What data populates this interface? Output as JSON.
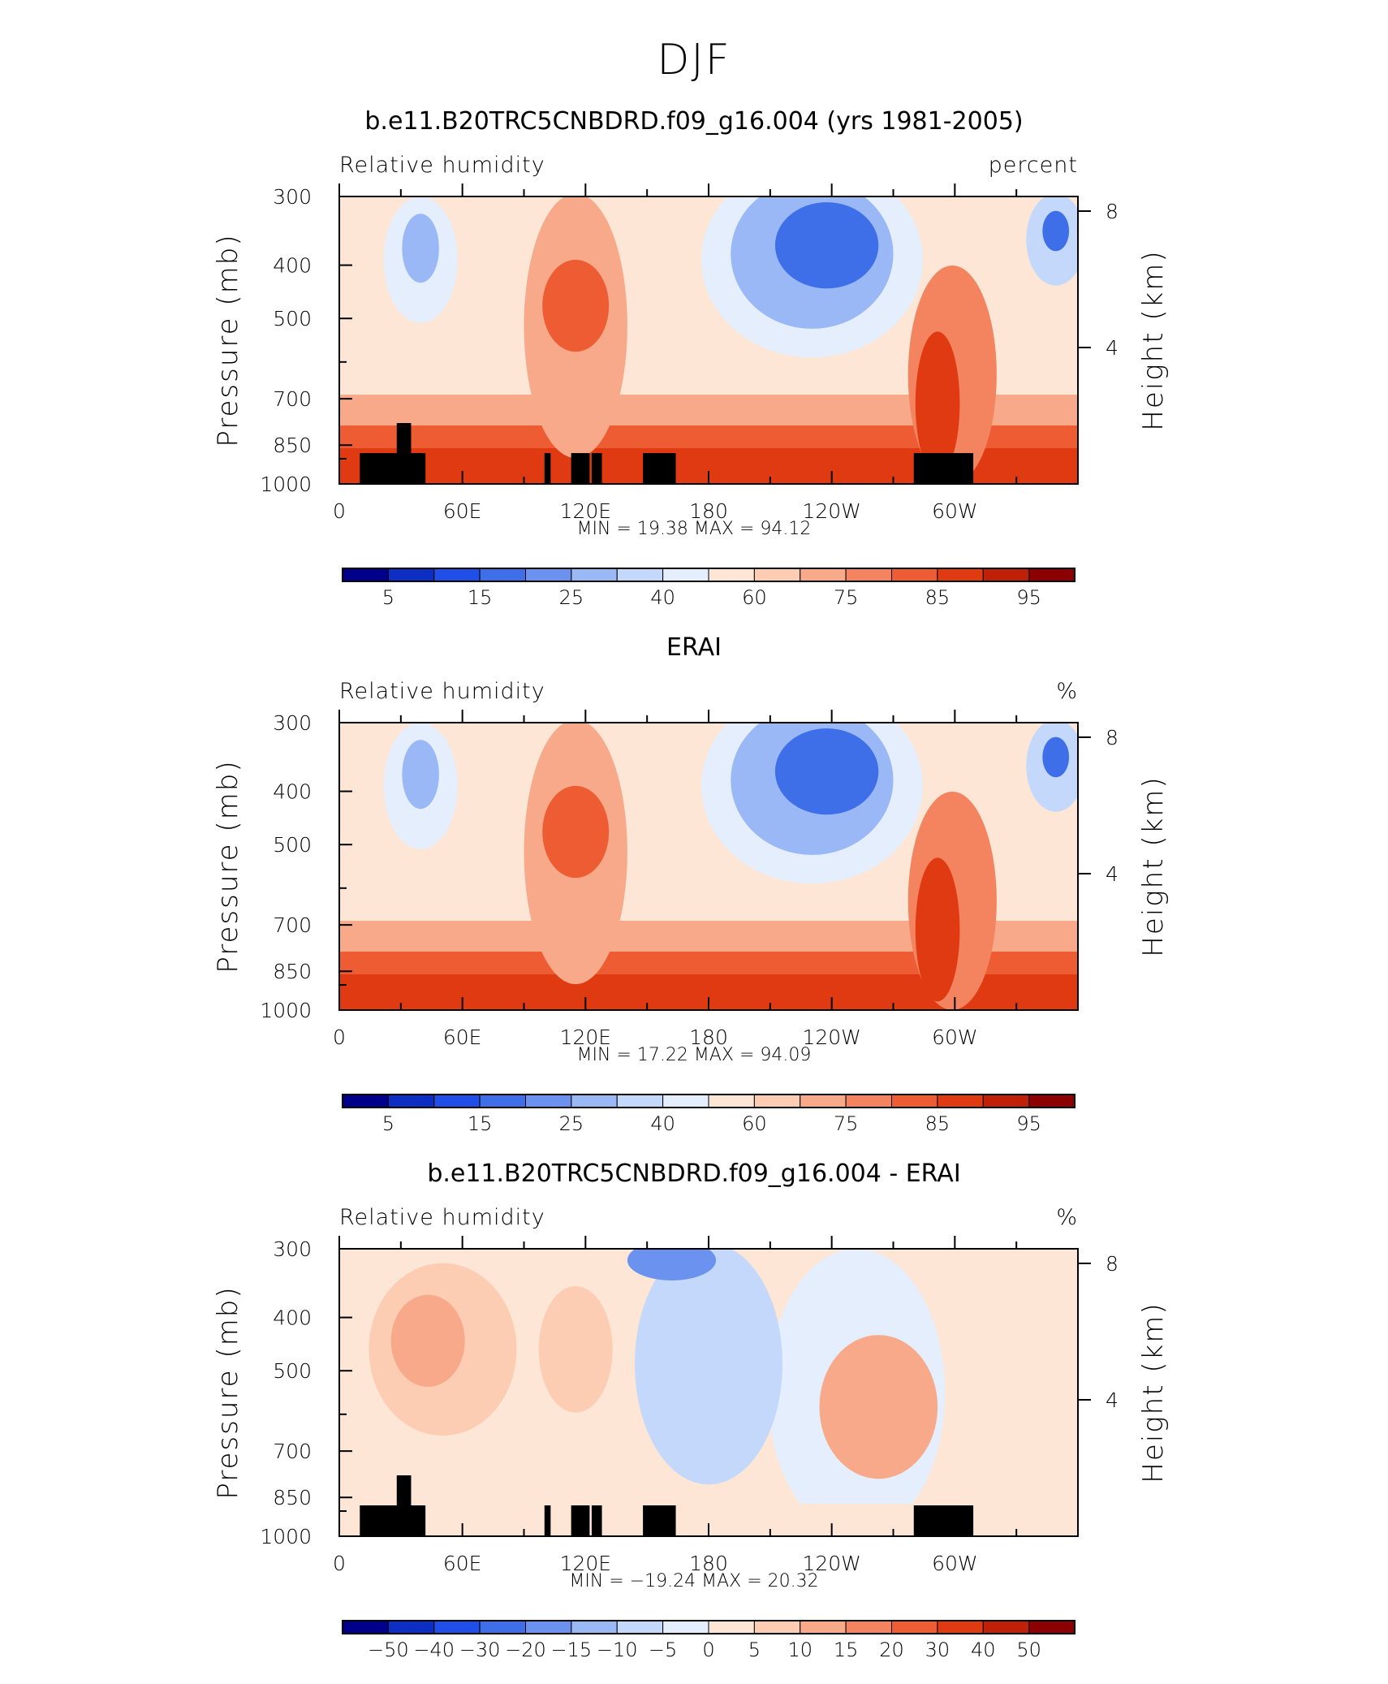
{
  "figure": {
    "title": "DJF"
  },
  "chart_data": [
    {
      "type": "heatmap",
      "title": "b.e11.B20TRC5CNBDRD.f09_g16.004 (yrs 1981-2005)",
      "left_label": "Relative humidity",
      "right_label": "percent",
      "ylabel": "Pressure (mb)",
      "ylabel_right": "Height (km)",
      "x_ticks": [
        "0",
        "60E",
        "120E",
        "180",
        "120W",
        "60W"
      ],
      "x_tick_lon": [
        0,
        60,
        120,
        180,
        240,
        300
      ],
      "xlim": [
        0,
        360
      ],
      "y_ticks": [
        "300",
        "400",
        "500",
        "700",
        "850",
        "1000"
      ],
      "y_tick_values": [
        300,
        400,
        500,
        700,
        850,
        1000
      ],
      "ylim": [
        1000,
        300
      ],
      "y_ticks_right": [
        "8",
        "4"
      ],
      "y_right_values": [
        8,
        4
      ],
      "stats_text": "MIN =   19.38   MAX =   94.12",
      "colorbar_labels": [
        "5",
        "15",
        "25",
        "40",
        "60",
        "75",
        "85",
        "95"
      ],
      "topography_mask": true
    },
    {
      "type": "heatmap",
      "title": "ERAI",
      "left_label": "Relative humidity",
      "right_label": "%",
      "ylabel": "Pressure (mb)",
      "ylabel_right": "Height (km)",
      "x_ticks": [
        "0",
        "60E",
        "120E",
        "180",
        "120W",
        "60W"
      ],
      "x_tick_lon": [
        0,
        60,
        120,
        180,
        240,
        300
      ],
      "xlim": [
        0,
        360
      ],
      "y_ticks": [
        "300",
        "400",
        "500",
        "700",
        "850",
        "1000"
      ],
      "y_tick_values": [
        300,
        400,
        500,
        700,
        850,
        1000
      ],
      "ylim": [
        1000,
        300
      ],
      "y_ticks_right": [
        "8",
        "4"
      ],
      "y_right_values": [
        8,
        4
      ],
      "stats_text": "MIN =   17.22   MAX =   94.09",
      "colorbar_labels": [
        "5",
        "15",
        "25",
        "40",
        "60",
        "75",
        "85",
        "95"
      ],
      "topography_mask": false
    },
    {
      "type": "heatmap",
      "title": "b.e11.B20TRC5CNBDRD.f09_g16.004 - ERAI",
      "left_label": "Relative humidity",
      "right_label": "%",
      "ylabel": "Pressure (mb)",
      "ylabel_right": "Height (km)",
      "x_ticks": [
        "0",
        "60E",
        "120E",
        "180",
        "120W",
        "60W"
      ],
      "x_tick_lon": [
        0,
        60,
        120,
        180,
        240,
        300
      ],
      "xlim": [
        0,
        360
      ],
      "y_ticks": [
        "300",
        "400",
        "500",
        "700",
        "850",
        "1000"
      ],
      "y_tick_values": [
        300,
        400,
        500,
        700,
        850,
        1000
      ],
      "ylim": [
        1000,
        300
      ],
      "y_ticks_right": [
        "8",
        "4"
      ],
      "y_right_values": [
        8,
        4
      ],
      "stats_text": "MIN =  −19.24   MAX =   20.32",
      "colorbar_labels": [
        "−50",
        "−40",
        "−30",
        "−20",
        "−15",
        "−10",
        "−5",
        "0",
        "5",
        "10",
        "15",
        "20",
        "30",
        "40",
        "50"
      ],
      "topography_mask": true
    }
  ],
  "colorbars": {
    "absolute": [
      "#00008b",
      "#0d2ec2",
      "#1f4fe6",
      "#3f6fe8",
      "#6b92ee",
      "#9bb8f6",
      "#c4d8fb",
      "#e4eefc",
      "#fde6d6",
      "#fccdb3",
      "#f7a98a",
      "#f3845f",
      "#ee5c33",
      "#e03a12",
      "#bf2007",
      "#8b0000"
    ],
    "difference": [
      "#00008b",
      "#0d2ec2",
      "#1f4fe6",
      "#3f6fe8",
      "#6b92ee",
      "#9bb8f6",
      "#c4d8fb",
      "#e4eefc",
      "#fde6d6",
      "#fccdb3",
      "#f7a98a",
      "#f3845f",
      "#ee5c33",
      "#e03a12",
      "#bf2007",
      "#8b0000"
    ]
  }
}
